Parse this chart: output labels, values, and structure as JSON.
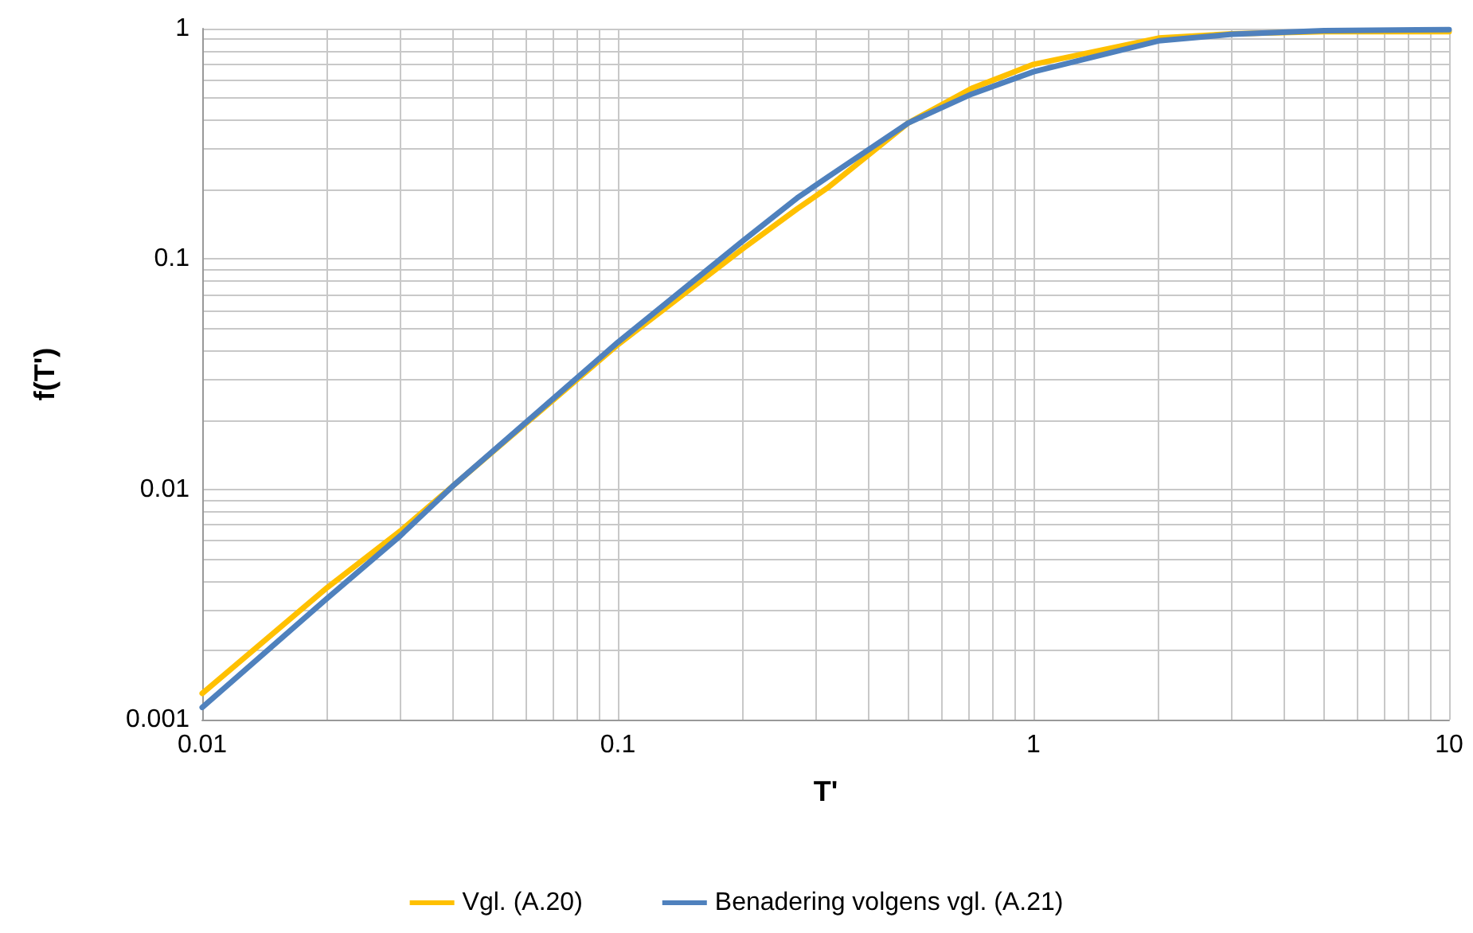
{
  "chart_data": {
    "type": "line",
    "xlabel": "T'",
    "ylabel": "f(T')",
    "log": "xy",
    "grid": true,
    "legend": "bottom",
    "marker": "none",
    "line_style": "solid",
    "xlim": [
      0.01,
      10
    ],
    "xticks": [
      0.01,
      0.1,
      1,
      10
    ],
    "ylim": [
      0.001,
      1
    ],
    "yticks": [
      0.001,
      0.01,
      0.1,
      1
    ],
    "series": [
      {
        "name": "Vgl. (A.20)",
        "color": "#ffc000",
        "x": [
          0.01,
          0.02,
          0.03,
          0.04,
          0.1,
          0.2,
          0.27,
          0.32,
          0.5,
          0.71,
          1,
          2,
          3,
          5,
          10
        ],
        "values": [
          0.0013,
          0.00375,
          0.0066,
          0.0103,
          0.0425,
          0.111,
          0.165,
          0.204,
          0.39,
          0.55,
          0.7,
          0.91,
          0.95,
          0.97,
          0.97
        ]
      },
      {
        "name": "Benadering volgens vgl. (A.21)",
        "color": "#4f81bd",
        "x": [
          0.01,
          0.02,
          0.03,
          0.04,
          0.1,
          0.2,
          0.27,
          0.32,
          0.5,
          0.71,
          1,
          2,
          3,
          5,
          10
        ],
        "values": [
          0.00113,
          0.00337,
          0.0063,
          0.0103,
          0.0435,
          0.12,
          0.184,
          0.227,
          0.39,
          0.52,
          0.65,
          0.885,
          0.945,
          0.98,
          0.99
        ]
      }
    ]
  }
}
